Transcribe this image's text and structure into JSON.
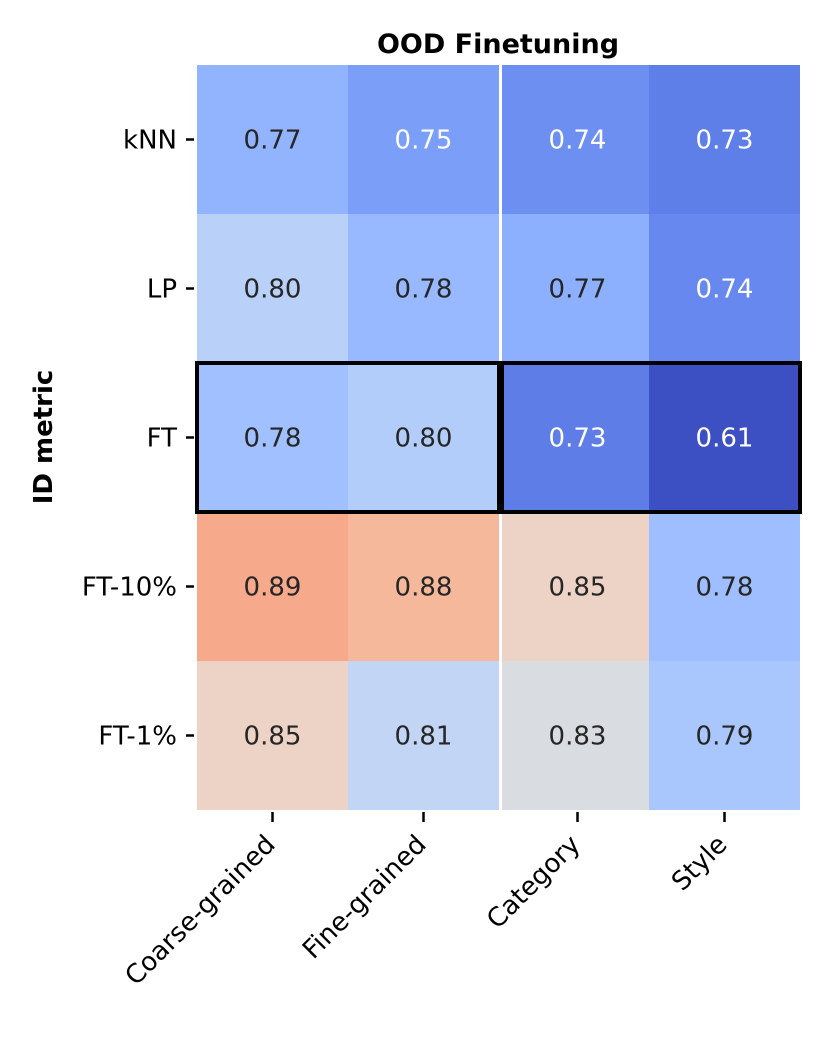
{
  "chart_data": {
    "type": "heatmap",
    "title": "OOD Finetuning",
    "xlabel": "",
    "ylabel": "ID metric",
    "columns": [
      "Coarse-grained",
      "Fine-grained",
      "Category",
      "Style"
    ],
    "rows": [
      "kNN",
      "LP",
      "FT",
      "FT-10%",
      "FT-1%"
    ],
    "values": [
      [
        0.77,
        0.75,
        0.74,
        0.73
      ],
      [
        0.8,
        0.78,
        0.77,
        0.74
      ],
      [
        0.78,
        0.8,
        0.73,
        0.61
      ],
      [
        0.89,
        0.88,
        0.85,
        0.78
      ],
      [
        0.85,
        0.81,
        0.83,
        0.79
      ]
    ],
    "cell_colors": [
      [
        "#92b4fe",
        "#7b9ff9",
        "#6c8ff1",
        "#5f7fe8"
      ],
      [
        "#b9d0f9",
        "#98b9ff",
        "#8db0fe",
        "#6788ee"
      ],
      [
        "#a1c0ff",
        "#b3cdfb",
        "#5e7de7",
        "#3d50c3"
      ],
      [
        "#f6a98b",
        "#f5b89b",
        "#ecd3c5",
        "#9ebeff"
      ],
      [
        "#ecd3c5",
        "#c3d5f4",
        "#d9dce1",
        "#aac7fd"
      ]
    ],
    "label_colors": [
      [
        "#262626",
        "#ffffff",
        "#ffffff",
        "#ffffff"
      ],
      [
        "#262626",
        "#262626",
        "#262626",
        "#ffffff"
      ],
      [
        "#262626",
        "#262626",
        "#ffffff",
        "#ffffff"
      ],
      [
        "#262626",
        "#262626",
        "#262626",
        "#262626"
      ],
      [
        "#262626",
        "#262626",
        "#262626",
        "#262626"
      ]
    ],
    "column_groups": [
      [
        "Coarse-grained",
        "Fine-grained"
      ],
      [
        "Category",
        "Style"
      ]
    ],
    "highlighted_row": "FT",
    "colormap": "coolwarm"
  }
}
